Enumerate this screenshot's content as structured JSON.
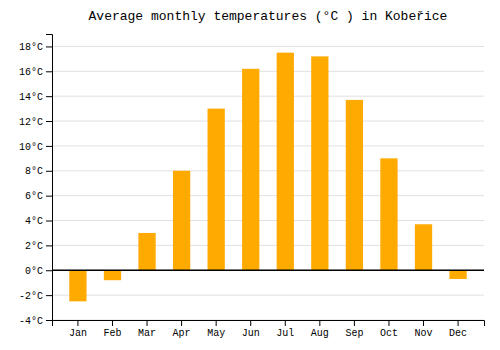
{
  "chart_data": {
    "type": "bar",
    "title": "Average monthly temperatures (°C ) in Kobeřice",
    "categories": [
      "Jan",
      "Feb",
      "Mar",
      "Apr",
      "May",
      "Jun",
      "Jul",
      "Aug",
      "Sep",
      "Oct",
      "Nov",
      "Dec"
    ],
    "values": [
      -2.5,
      -0.8,
      3.0,
      8.0,
      13.0,
      16.2,
      17.5,
      17.2,
      13.7,
      9.0,
      3.7,
      -0.7
    ],
    "color": "#FFAA00",
    "ylim": [
      -4,
      19
    ],
    "yticks": [
      {
        "value": -4,
        "label": "-4°C"
      },
      {
        "value": -2,
        "label": "-2°C"
      },
      {
        "value": 0,
        "label": "0°C"
      },
      {
        "value": 2,
        "label": "2°C"
      },
      {
        "value": 4,
        "label": "4°C"
      },
      {
        "value": 6,
        "label": "6°C"
      },
      {
        "value": 8,
        "label": "8°C"
      },
      {
        "value": 10,
        "label": "10°C"
      },
      {
        "value": 12,
        "label": "12°C"
      },
      {
        "value": 14,
        "label": "14°C"
      },
      {
        "value": 16,
        "label": "16°C"
      },
      {
        "value": 18,
        "label": "18°C"
      }
    ],
    "grid": true
  }
}
